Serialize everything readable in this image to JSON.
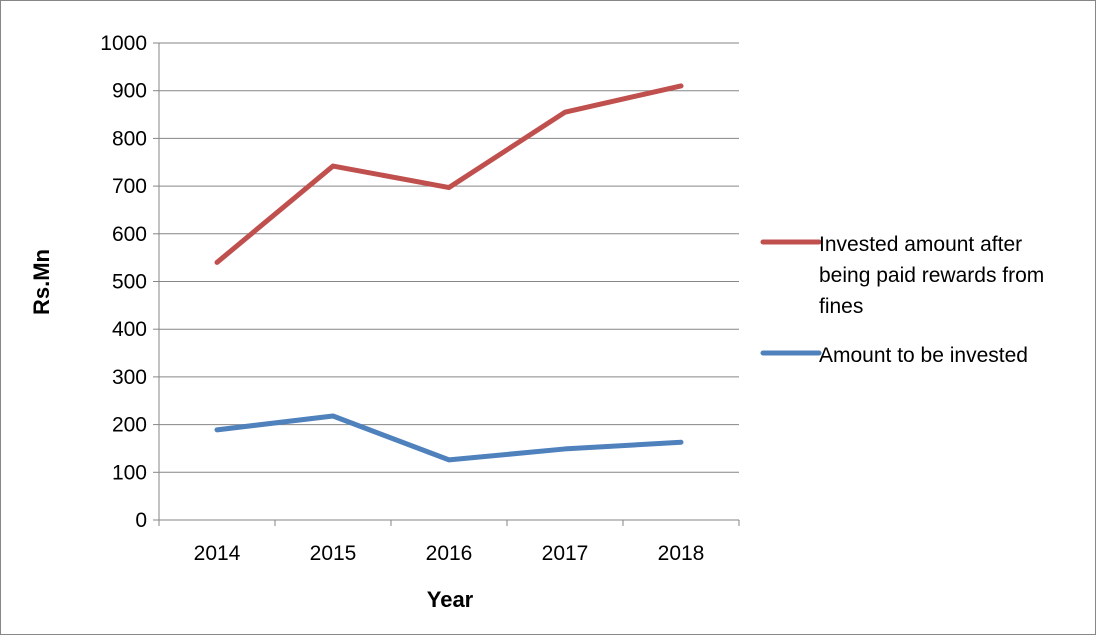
{
  "chart_data": {
    "type": "line",
    "xlabel": "Year",
    "ylabel": "Rs.Mn",
    "ylim": [
      0,
      1000
    ],
    "y_ticks": [
      0,
      100,
      200,
      300,
      400,
      500,
      600,
      700,
      800,
      900,
      1000
    ],
    "categories": [
      "2014",
      "2015",
      "2016",
      "2017",
      "2018"
    ],
    "grid": "horizontal",
    "legend_position": "right",
    "series": [
      {
        "name": "Invested amount after being paid rewards from fines",
        "legend_lines": [
          "Invested amount after",
          "being paid rewards from",
          "fines"
        ],
        "color": "#C0504D",
        "values": [
          540,
          742,
          697,
          855,
          910
        ]
      },
      {
        "name": "Amount to be invested",
        "legend_lines": [
          "Amount to be invested"
        ],
        "color": "#4F81BD",
        "values": [
          189,
          218,
          126,
          149,
          163
        ]
      }
    ]
  }
}
